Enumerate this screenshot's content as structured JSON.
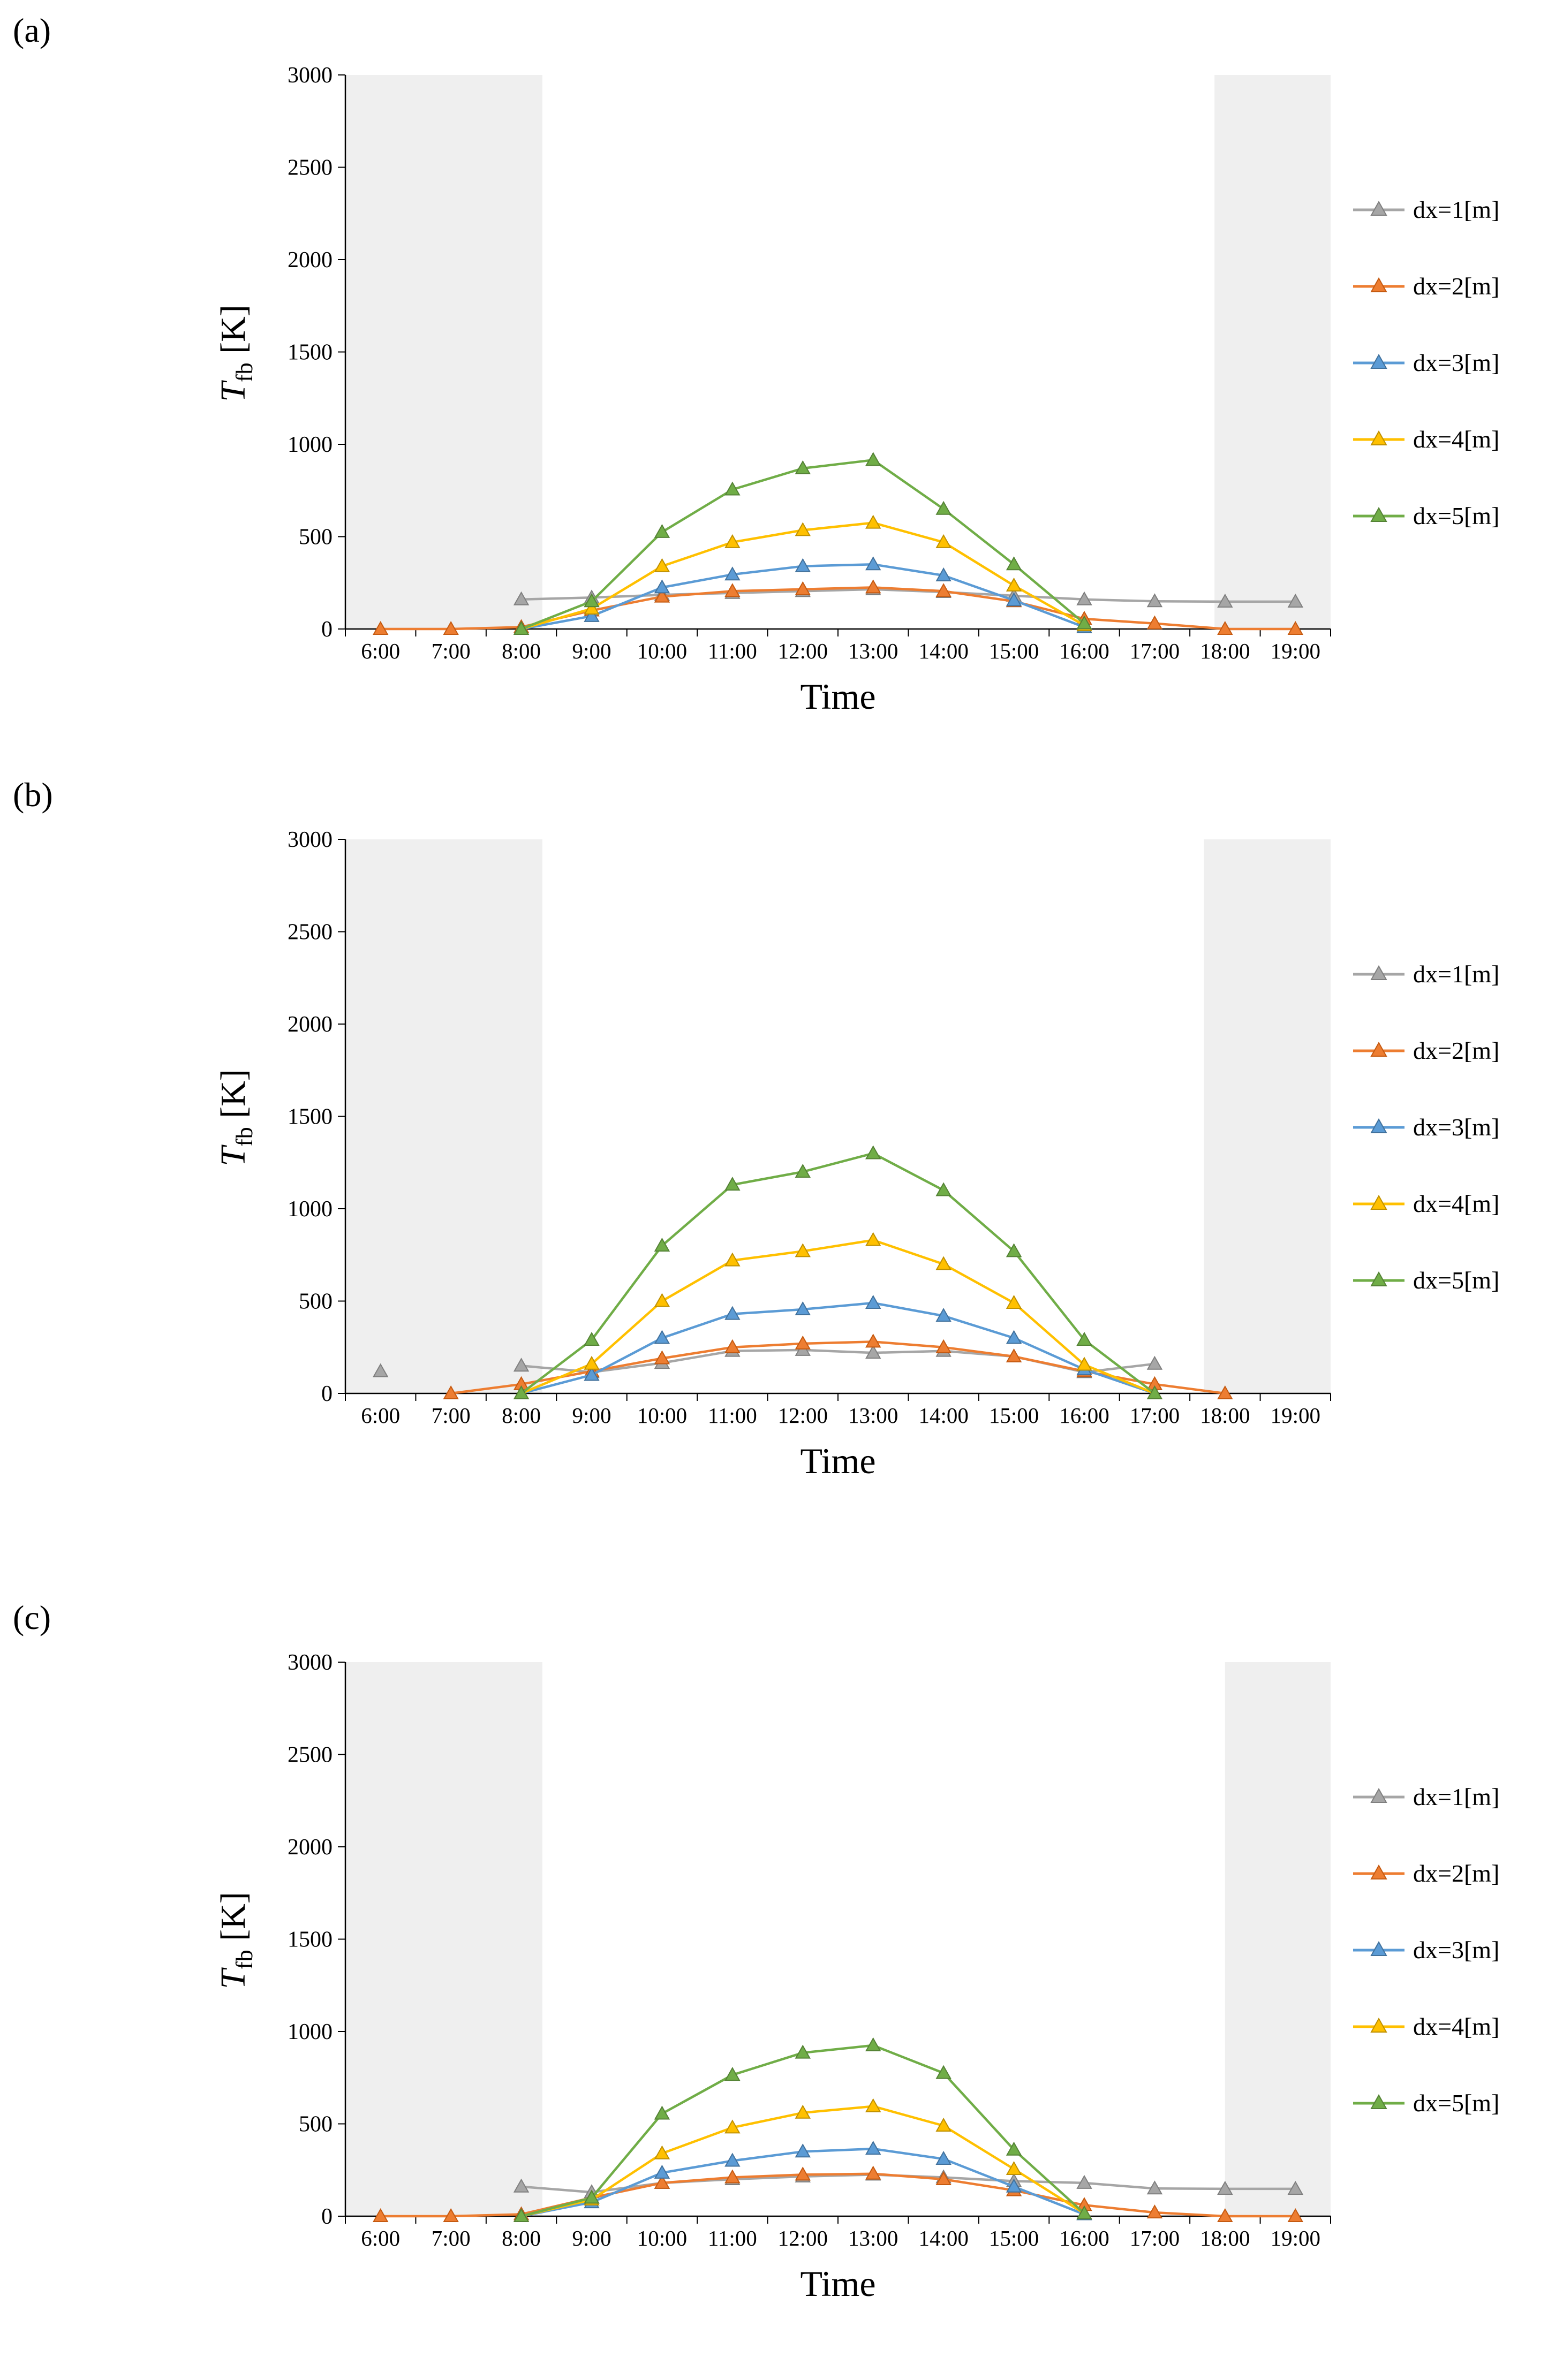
{
  "figure": {
    "background": "#ffffff",
    "axis_color": "#000000",
    "tick_font_size": 42
  },
  "chart_data": [
    {
      "type": "line",
      "panel_label": "(a)",
      "title": "",
      "xlabel": "Time",
      "ylabel": "T_fb [K]",
      "ylabel_parts": {
        "symbol": "T",
        "subscript": "fb",
        "unit": " [K]"
      },
      "ylim": [
        0,
        3000
      ],
      "y_tick_step": 500,
      "grid": false,
      "legend_position": "right",
      "band_color": "#efefef",
      "shaded_bands": [
        {
          "from": 0,
          "to": 2.8
        },
        {
          "from": 12.35,
          "to": 14
        }
      ],
      "categories": [
        "6:00",
        "7:00",
        "8:00",
        "9:00",
        "10:00",
        "11:00",
        "12:00",
        "13:00",
        "14:00",
        "15:00",
        "16:00",
        "17:00",
        "18:00",
        "19:00"
      ],
      "series": [
        {
          "name": "dx=1[m]",
          "color": "#a6a6a6",
          "edge_color": "#7f7f7f",
          "values": [
            null,
            null,
            160,
            170,
            185,
            195,
            205,
            215,
            200,
            180,
            160,
            150,
            148,
            148
          ]
        },
        {
          "name": "dx=2[m]",
          "color": "#ed7d31",
          "edge_color": "#c55a11",
          "values": [
            0,
            0,
            10,
            100,
            175,
            205,
            215,
            225,
            205,
            150,
            55,
            30,
            0,
            0
          ]
        },
        {
          "name": "dx=3[m]",
          "color": "#5b9bd5",
          "edge_color": "#41719c",
          "values": [
            null,
            null,
            0,
            70,
            225,
            295,
            340,
            350,
            290,
            155,
            10,
            null,
            null,
            null
          ]
        },
        {
          "name": "dx=4[m]",
          "color": "#ffc000",
          "edge_color": "#bf9000",
          "values": [
            null,
            null,
            0,
            110,
            340,
            470,
            535,
            575,
            470,
            235,
            20,
            null,
            null,
            null
          ]
        },
        {
          "name": "dx=5[m]",
          "color": "#70ad47",
          "edge_color": "#548235",
          "values": [
            null,
            null,
            0,
            150,
            525,
            755,
            870,
            915,
            650,
            350,
            30,
            null,
            null,
            null
          ]
        }
      ]
    },
    {
      "type": "line",
      "panel_label": "(b)",
      "title": "",
      "xlabel": "Time",
      "ylabel": "T_fb [K]",
      "ylabel_parts": {
        "symbol": "T",
        "subscript": "fb",
        "unit": " [K]"
      },
      "ylim": [
        0,
        3000
      ],
      "y_tick_step": 500,
      "grid": false,
      "legend_position": "right",
      "band_color": "#efefef",
      "shaded_bands": [
        {
          "from": 0,
          "to": 2.8
        },
        {
          "from": 12.2,
          "to": 14
        }
      ],
      "categories": [
        "6:00",
        "7:00",
        "8:00",
        "9:00",
        "10:00",
        "11:00",
        "12:00",
        "13:00",
        "14:00",
        "15:00",
        "16:00",
        "17:00",
        "18:00",
        "19:00"
      ],
      "series": [
        {
          "name": "dx=1[m]",
          "color": "#a6a6a6",
          "edge_color": "#7f7f7f",
          "values": [
            120,
            null,
            150,
            115,
            165,
            230,
            235,
            220,
            230,
            200,
            115,
            160,
            null,
            null
          ]
        },
        {
          "name": "dx=2[m]",
          "color": "#ed7d31",
          "edge_color": "#c55a11",
          "values": [
            null,
            0,
            50,
            120,
            190,
            250,
            270,
            280,
            250,
            200,
            120,
            50,
            0,
            null
          ]
        },
        {
          "name": "dx=3[m]",
          "color": "#5b9bd5",
          "edge_color": "#41719c",
          "values": [
            null,
            null,
            0,
            100,
            300,
            430,
            455,
            490,
            420,
            300,
            130,
            0,
            null,
            null
          ]
        },
        {
          "name": "dx=4[m]",
          "color": "#ffc000",
          "edge_color": "#bf9000",
          "values": [
            null,
            null,
            0,
            160,
            500,
            720,
            770,
            830,
            700,
            490,
            155,
            0,
            null,
            null
          ]
        },
        {
          "name": "dx=5[m]",
          "color": "#70ad47",
          "edge_color": "#548235",
          "values": [
            null,
            null,
            0,
            290,
            800,
            1130,
            1200,
            1300,
            1100,
            770,
            290,
            0,
            null,
            null
          ]
        }
      ]
    },
    {
      "type": "line",
      "panel_label": "(c)",
      "title": "",
      "xlabel": "Time",
      "ylabel": "T_fb [K]",
      "ylabel_parts": {
        "symbol": "T",
        "subscript": "fb",
        "unit": " [K]"
      },
      "ylim": [
        0,
        3000
      ],
      "y_tick_step": 500,
      "grid": false,
      "legend_position": "right",
      "band_color": "#efefef",
      "shaded_bands": [
        {
          "from": 0,
          "to": 2.8
        },
        {
          "from": 12.5,
          "to": 14
        }
      ],
      "categories": [
        "6:00",
        "7:00",
        "8:00",
        "9:00",
        "10:00",
        "11:00",
        "12:00",
        "13:00",
        "14:00",
        "15:00",
        "16:00",
        "17:00",
        "18:00",
        "19:00"
      ],
      "series": [
        {
          "name": "dx=1[m]",
          "color": "#a6a6a6",
          "edge_color": "#7f7f7f",
          "values": [
            null,
            null,
            160,
            130,
            180,
            200,
            215,
            225,
            210,
            190,
            180,
            150,
            148,
            148
          ]
        },
        {
          "name": "dx=2[m]",
          "color": "#ed7d31",
          "edge_color": "#c55a11",
          "values": [
            0,
            0,
            10,
            100,
            180,
            210,
            225,
            230,
            200,
            140,
            60,
            20,
            0,
            0
          ]
        },
        {
          "name": "dx=3[m]",
          "color": "#5b9bd5",
          "edge_color": "#41719c",
          "values": [
            null,
            null,
            0,
            75,
            235,
            300,
            350,
            365,
            310,
            160,
            10,
            null,
            null,
            null
          ]
        },
        {
          "name": "dx=4[m]",
          "color": "#ffc000",
          "edge_color": "#bf9000",
          "values": [
            null,
            null,
            0,
            90,
            340,
            480,
            560,
            595,
            490,
            255,
            15,
            null,
            null,
            null
          ]
        },
        {
          "name": "dx=5[m]",
          "color": "#70ad47",
          "edge_color": "#548235",
          "values": [
            null,
            null,
            0,
            100,
            555,
            765,
            885,
            925,
            775,
            360,
            15,
            null,
            null,
            null
          ]
        }
      ]
    }
  ]
}
